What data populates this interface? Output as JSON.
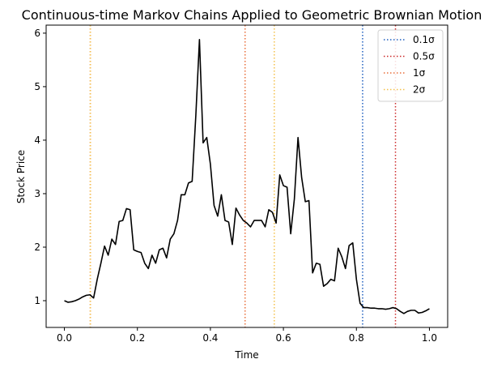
{
  "chart_data": {
    "type": "line",
    "title": "Continuous-time Markov Chains Applied to Geometric Brownian Motion",
    "xlabel": "Time",
    "ylabel": "Stock Price",
    "xlim": [
      -0.05,
      1.05
    ],
    "ylim": [
      0.5,
      6.15
    ],
    "xticks": [
      0.0,
      0.2,
      0.4,
      0.6,
      0.8,
      1.0
    ],
    "xtick_labels": [
      "0.0",
      "0.2",
      "0.4",
      "0.6",
      "0.8",
      "1.0"
    ],
    "yticks": [
      1,
      2,
      3,
      4,
      5,
      6
    ],
    "ytick_labels": [
      "1",
      "2",
      "3",
      "4",
      "5",
      "6"
    ],
    "grid": false,
    "legend_position": "top-right",
    "series": [
      {
        "color": "#000000",
        "x": [
          0.0,
          0.01,
          0.02,
          0.03,
          0.04,
          0.05,
          0.06,
          0.07,
          0.08,
          0.09,
          0.1,
          0.11,
          0.12,
          0.13,
          0.14,
          0.15,
          0.16,
          0.17,
          0.18,
          0.19,
          0.2,
          0.21,
          0.22,
          0.23,
          0.24,
          0.25,
          0.26,
          0.27,
          0.28,
          0.29,
          0.3,
          0.31,
          0.32,
          0.33,
          0.34,
          0.35,
          0.36,
          0.37,
          0.38,
          0.39,
          0.4,
          0.41,
          0.42,
          0.43,
          0.44,
          0.45,
          0.46,
          0.47,
          0.48,
          0.49,
          0.5,
          0.51,
          0.52,
          0.53,
          0.54,
          0.55,
          0.56,
          0.57,
          0.58,
          0.59,
          0.6,
          0.61,
          0.62,
          0.63,
          0.64,
          0.65,
          0.66,
          0.67,
          0.68,
          0.69,
          0.7,
          0.71,
          0.72,
          0.73,
          0.74,
          0.75,
          0.76,
          0.77,
          0.78,
          0.79,
          0.8,
          0.81,
          0.82,
          0.83,
          0.84,
          0.85,
          0.86,
          0.87,
          0.88,
          0.89,
          0.9,
          0.91,
          0.92,
          0.93,
          0.94,
          0.95,
          0.96,
          0.97,
          0.98,
          0.99,
          1.0
        ],
        "values": [
          1.0,
          0.97,
          0.98,
          1.0,
          1.03,
          1.07,
          1.1,
          1.11,
          1.05,
          1.4,
          1.7,
          2.02,
          1.85,
          2.15,
          2.05,
          2.48,
          2.5,
          2.72,
          2.7,
          1.95,
          1.92,
          1.9,
          1.7,
          1.6,
          1.85,
          1.7,
          1.95,
          1.98,
          1.8,
          2.15,
          2.25,
          2.5,
          2.98,
          2.98,
          3.2,
          3.23,
          4.45,
          5.88,
          3.95,
          4.05,
          3.55,
          2.78,
          2.58,
          2.98,
          2.5,
          2.47,
          2.05,
          2.73,
          2.6,
          2.5,
          2.45,
          2.38,
          2.5,
          2.5,
          2.5,
          2.38,
          2.7,
          2.65,
          2.45,
          3.35,
          3.15,
          3.12,
          2.25,
          2.9,
          4.05,
          3.3,
          2.85,
          2.87,
          1.52,
          1.7,
          1.68,
          1.27,
          1.32,
          1.4,
          1.37,
          1.98,
          1.82,
          1.6,
          2.03,
          2.08,
          1.4,
          0.95,
          0.87,
          0.87,
          0.86,
          0.86,
          0.85,
          0.85,
          0.84,
          0.85,
          0.87,
          0.85,
          0.8,
          0.76,
          0.8,
          0.82,
          0.82,
          0.77,
          0.78,
          0.81,
          0.85
        ]
      }
    ],
    "vlines": [
      {
        "label": "0.1σ",
        "color": "#1f5fbf",
        "x": [
          0.817
        ]
      },
      {
        "label": "0.5σ",
        "color": "#cc2a2a",
        "x": [
          0.495,
          0.907
        ]
      },
      {
        "label": "1σ",
        "color": "#e86f3b",
        "x": [
          0.071,
          0.495
        ]
      },
      {
        "label": "2σ",
        "color": "#f4c04a",
        "x": [
          0.071,
          0.575
        ]
      }
    ]
  }
}
